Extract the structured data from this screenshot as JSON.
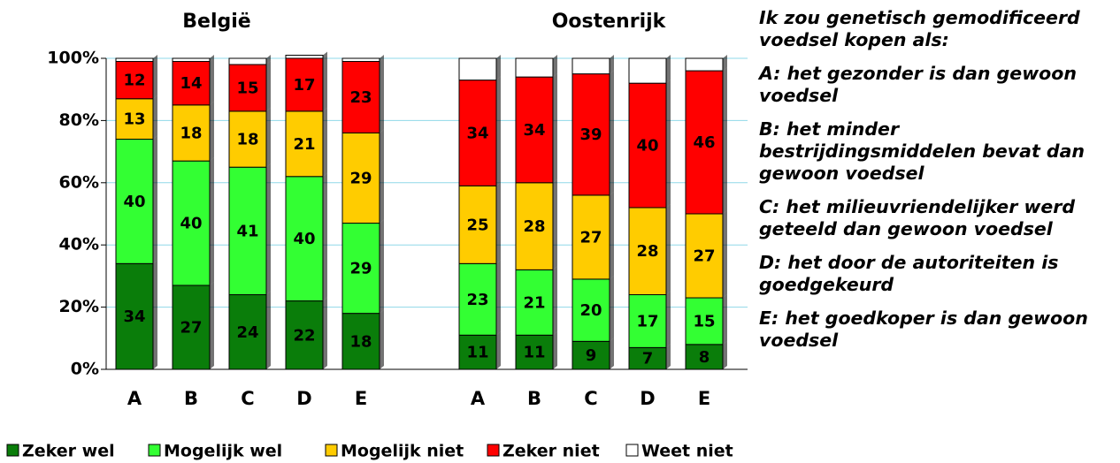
{
  "chart_data": [
    {
      "type": "stacked_bar",
      "title": "België",
      "categories": [
        "A",
        "B",
        "C",
        "D",
        "E"
      ],
      "ylim": [
        0,
        100
      ],
      "yticks": [
        {
          "value": 0,
          "label": "0%"
        },
        {
          "value": 20,
          "label": "20%"
        },
        {
          "value": 40,
          "label": "40%"
        },
        {
          "value": 60,
          "label": "60%"
        },
        {
          "value": 80,
          "label": "80%"
        },
        {
          "value": 100,
          "label": "100%"
        }
      ],
      "grid": true,
      "series": [
        {
          "name": "Zeker wel",
          "color": "#0a7d0a",
          "values": [
            34,
            27,
            24,
            22,
            18
          ],
          "show_labels": true
        },
        {
          "name": "Mogelijk wel",
          "color": "#33ff33",
          "values": [
            40,
            40,
            41,
            40,
            29
          ],
          "show_labels": true
        },
        {
          "name": "Mogelijk niet",
          "color": "#ffcc00",
          "values": [
            13,
            18,
            18,
            21,
            29
          ],
          "show_labels": true
        },
        {
          "name": "Zeker niet",
          "color": "#ff0000",
          "values": [
            12,
            14,
            15,
            17,
            23
          ],
          "show_labels": true
        },
        {
          "name": "Weet niet",
          "color": "#ffffff",
          "values": [
            1,
            1,
            2,
            1,
            1
          ],
          "show_labels": false
        }
      ]
    },
    {
      "type": "stacked_bar",
      "title": "Oostenrijk",
      "categories": [
        "A",
        "B",
        "C",
        "D",
        "E"
      ],
      "ylim": [
        0,
        100
      ],
      "series": [
        {
          "color": "#0a7d0a",
          "values": [
            11,
            11,
            9,
            7,
            8
          ],
          "show_labels": true
        },
        {
          "color": "#33ff33",
          "values": [
            23,
            21,
            20,
            17,
            15
          ],
          "show_labels": true
        },
        {
          "color": "#ffcc00",
          "values": [
            25,
            28,
            27,
            28,
            27
          ],
          "show_labels": true
        },
        {
          "color": "#ff0000",
          "values": [
            34,
            34,
            39,
            40,
            46
          ],
          "show_labels": true
        },
        {
          "color": "#ffffff",
          "values": [
            7,
            6,
            5,
            8,
            4
          ],
          "show_labels": false
        }
      ]
    }
  ],
  "sidebar": {
    "heading": "Ik zou genetisch gemodificeerd voedsel kopen als:",
    "items": [
      "A: het gezonder is dan gewoon voedsel",
      "B: het minder bestrijdingsmiddelen bevat dan gewoon voedsel",
      "C: het milieuvriendelijker werd geteeld dan gewoon voedsel",
      "D: het door de autoriteiten is goedgekeurd",
      "E: het goedkoper is dan gewoon voedsel"
    ]
  }
}
